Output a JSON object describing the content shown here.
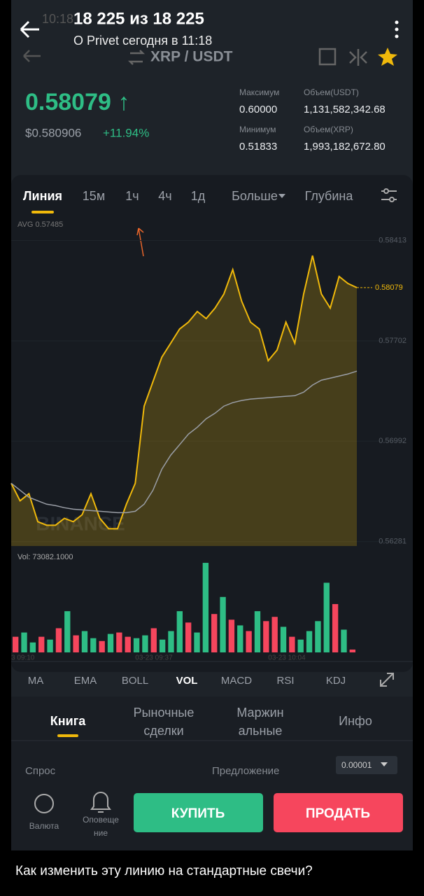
{
  "header": {
    "counter": "18 225 из 18 225",
    "subtitle": "О Privet сегодня в 11:18"
  },
  "app": {
    "status_time": "10:18",
    "pair": "XRP / USDT",
    "price": "0.58079 ↑",
    "price_usd": "$0.580906",
    "change": "+11.94%",
    "stats": [
      {
        "label": "Максимум",
        "value": "0.60000"
      },
      {
        "label": "Минимум",
        "value": "0.51833"
      },
      {
        "label": "Объем(USDT)",
        "value": "1,131,582,342.68"
      },
      {
        "label": "Объем(XRP)",
        "value": "1,993,182,672.80"
      }
    ]
  },
  "tabs": [
    "Линия",
    "15м",
    "1ч",
    "4ч",
    "1д",
    "Больше",
    "Глубина"
  ],
  "chart": {
    "type": "line",
    "avg_label": "AVG 0.57485",
    "watermark": "BINANCE",
    "last_label": "0.58079",
    "ylim": [
      0.5625,
      0.5848
    ],
    "yticks": [
      0.58413,
      0.57702,
      0.56992,
      0.56281
    ],
    "series": [
      {
        "color": "#f0b90b",
        "values": [
          0.56694,
          0.5657,
          0.5662,
          0.56422,
          0.56397,
          0.56397,
          0.56446,
          0.56422,
          0.56471,
          0.5662,
          0.56446,
          0.56372,
          0.56372,
          0.56546,
          0.56694,
          0.5724,
          0.57414,
          0.57587,
          0.57686,
          0.57786,
          0.57835,
          0.5791,
          0.5786,
          0.57934,
          0.58034,
          0.58207,
          0.57984,
          0.57835,
          0.57786,
          0.57562,
          0.57637,
          0.57835,
          0.57686,
          0.58034,
          0.58306,
          0.58034,
          0.57934,
          0.58158,
          0.58108,
          0.58079
        ]
      },
      {
        "color": "#9a9ea6",
        "values": [
          0.56694,
          0.56645,
          0.56595,
          0.5657,
          0.56546,
          0.56536,
          0.56521,
          0.56511,
          0.56506,
          0.56501,
          0.56496,
          0.56491,
          0.56486,
          0.56486,
          0.56496,
          0.56546,
          0.56645,
          0.56794,
          0.56893,
          0.56967,
          0.57042,
          0.57091,
          0.57151,
          0.5719,
          0.5724,
          0.57265,
          0.5728,
          0.5729,
          0.57295,
          0.573,
          0.57305,
          0.5731,
          0.57314,
          0.57339,
          0.57389,
          0.57424,
          0.57438,
          0.57453,
          0.57468,
          0.57488
        ]
      }
    ]
  },
  "volume": {
    "type": "bar",
    "label": "Vol: 73082.1000",
    "ylim": [
      0,
      130
    ],
    "x_labels": [
      "3 09:10",
      "03-23 09:37",
      "03-23 10:04"
    ],
    "values": [
      22,
      28,
      14,
      22,
      18,
      34,
      58,
      24,
      30,
      20,
      16,
      26,
      28,
      22,
      20,
      24,
      34,
      18,
      30,
      58,
      42,
      28,
      126,
      54,
      78,
      46,
      38,
      30,
      58,
      44,
      50,
      36,
      22,
      18,
      30,
      44,
      98,
      68,
      32,
      4
    ],
    "colors": [
      "#f6465d",
      "#2ebd85",
      "#2ebd85",
      "#f6465d",
      "#2ebd85",
      "#f6465d",
      "#2ebd85",
      "#f6465d",
      "#2ebd85",
      "#2ebd85",
      "#f6465d",
      "#2ebd85",
      "#f6465d",
      "#f6465d",
      "#2ebd85",
      "#2ebd85",
      "#f6465d",
      "#2ebd85",
      "#2ebd85",
      "#2ebd85",
      "#f6465d",
      "#2ebd85",
      "#2ebd85",
      "#f6465d",
      "#2ebd85",
      "#f6465d",
      "#2ebd85",
      "#f6465d",
      "#2ebd85",
      "#f6465d",
      "#f6465d",
      "#2ebd85",
      "#f6465d",
      "#2ebd85",
      "#2ebd85",
      "#2ebd85",
      "#2ebd85",
      "#f6465d",
      "#2ebd85",
      "#f6465d"
    ]
  },
  "indicators": [
    "MA",
    "EMA",
    "BOLL",
    "VOL",
    "MACD",
    "RSI",
    "KDJ"
  ],
  "book_tabs": [
    [
      "Книга"
    ],
    [
      "Рыночные",
      "сделки"
    ],
    [
      "Маржин",
      "альные"
    ],
    [
      "Инфо"
    ]
  ],
  "book": {
    "bid": "Спрос",
    "ask": "Предложение",
    "step": "0.00001"
  },
  "actions": {
    "currency": "Валюта",
    "alerts": [
      "Оповеще",
      "ние"
    ],
    "buy": "КУПИТЬ",
    "sell": "ПРОДАТЬ"
  },
  "caption": "Как изменить эту линию на стандартные свечи?"
}
